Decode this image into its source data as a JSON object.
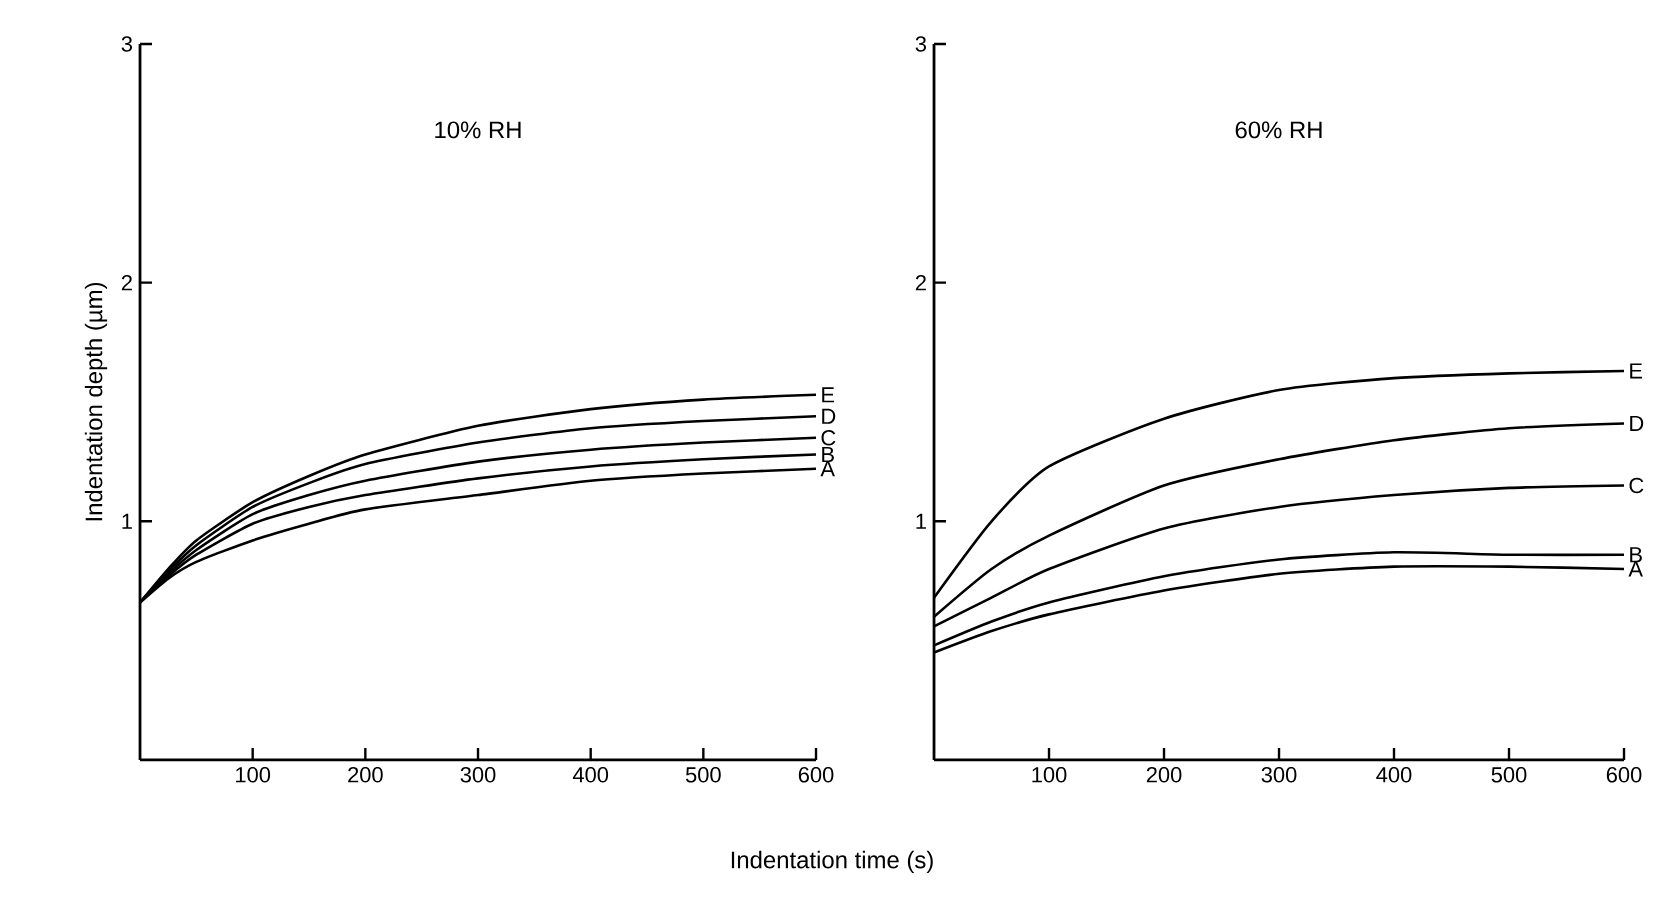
{
  "chart_data": [
    {
      "type": "line",
      "title": "10% RH",
      "xlabel": "Indentation time (s)",
      "ylabel": "Indentation depth (µm)",
      "x": [
        0,
        25,
        50,
        100,
        150,
        200,
        300,
        400,
        500,
        600
      ],
      "xlim": [
        0,
        600
      ],
      "ylim": [
        0,
        3
      ],
      "xticks": [
        100,
        200,
        300,
        400,
        500,
        600
      ],
      "yticks": [
        1,
        2,
        3
      ],
      "series": [
        {
          "name": "A",
          "color": "#000000",
          "values": [
            0.66,
            0.76,
            0.83,
            0.92,
            0.99,
            1.05,
            1.11,
            1.17,
            1.2,
            1.22
          ]
        },
        {
          "name": "B",
          "color": "#000000",
          "values": [
            0.66,
            0.77,
            0.86,
            0.99,
            1.06,
            1.11,
            1.18,
            1.23,
            1.26,
            1.28
          ]
        },
        {
          "name": "C",
          "color": "#000000",
          "values": [
            0.66,
            0.78,
            0.88,
            1.03,
            1.11,
            1.17,
            1.25,
            1.3,
            1.33,
            1.35
          ]
        },
        {
          "name": "D",
          "color": "#000000",
          "values": [
            0.66,
            0.79,
            0.9,
            1.06,
            1.16,
            1.24,
            1.33,
            1.39,
            1.42,
            1.44
          ]
        },
        {
          "name": "E",
          "color": "#000000",
          "values": [
            0.66,
            0.8,
            0.92,
            1.08,
            1.19,
            1.28,
            1.4,
            1.47,
            1.51,
            1.53
          ]
        }
      ]
    },
    {
      "type": "line",
      "title": "60% RH",
      "x": [
        0,
        50,
        100,
        200,
        300,
        400,
        500,
        600
      ],
      "xlim": [
        0,
        600
      ],
      "ylim": [
        0,
        3
      ],
      "xticks": [
        100,
        200,
        300,
        400,
        500,
        600
      ],
      "yticks": [
        1,
        2,
        3
      ],
      "series": [
        {
          "name": "A",
          "color": "#000000",
          "values": [
            0.45,
            0.54,
            0.61,
            0.71,
            0.78,
            0.81,
            0.81,
            0.8
          ]
        },
        {
          "name": "B",
          "color": "#000000",
          "values": [
            0.48,
            0.58,
            0.66,
            0.77,
            0.84,
            0.87,
            0.86,
            0.86
          ]
        },
        {
          "name": "C",
          "color": "#000000",
          "values": [
            0.56,
            0.68,
            0.8,
            0.97,
            1.06,
            1.11,
            1.14,
            1.15
          ]
        },
        {
          "name": "D",
          "color": "#000000",
          "values": [
            0.6,
            0.8,
            0.94,
            1.15,
            1.26,
            1.34,
            1.39,
            1.41
          ]
        },
        {
          "name": "E",
          "color": "#000000",
          "values": [
            0.68,
            1.0,
            1.23,
            1.43,
            1.55,
            1.6,
            1.62,
            1.63
          ]
        }
      ]
    }
  ]
}
